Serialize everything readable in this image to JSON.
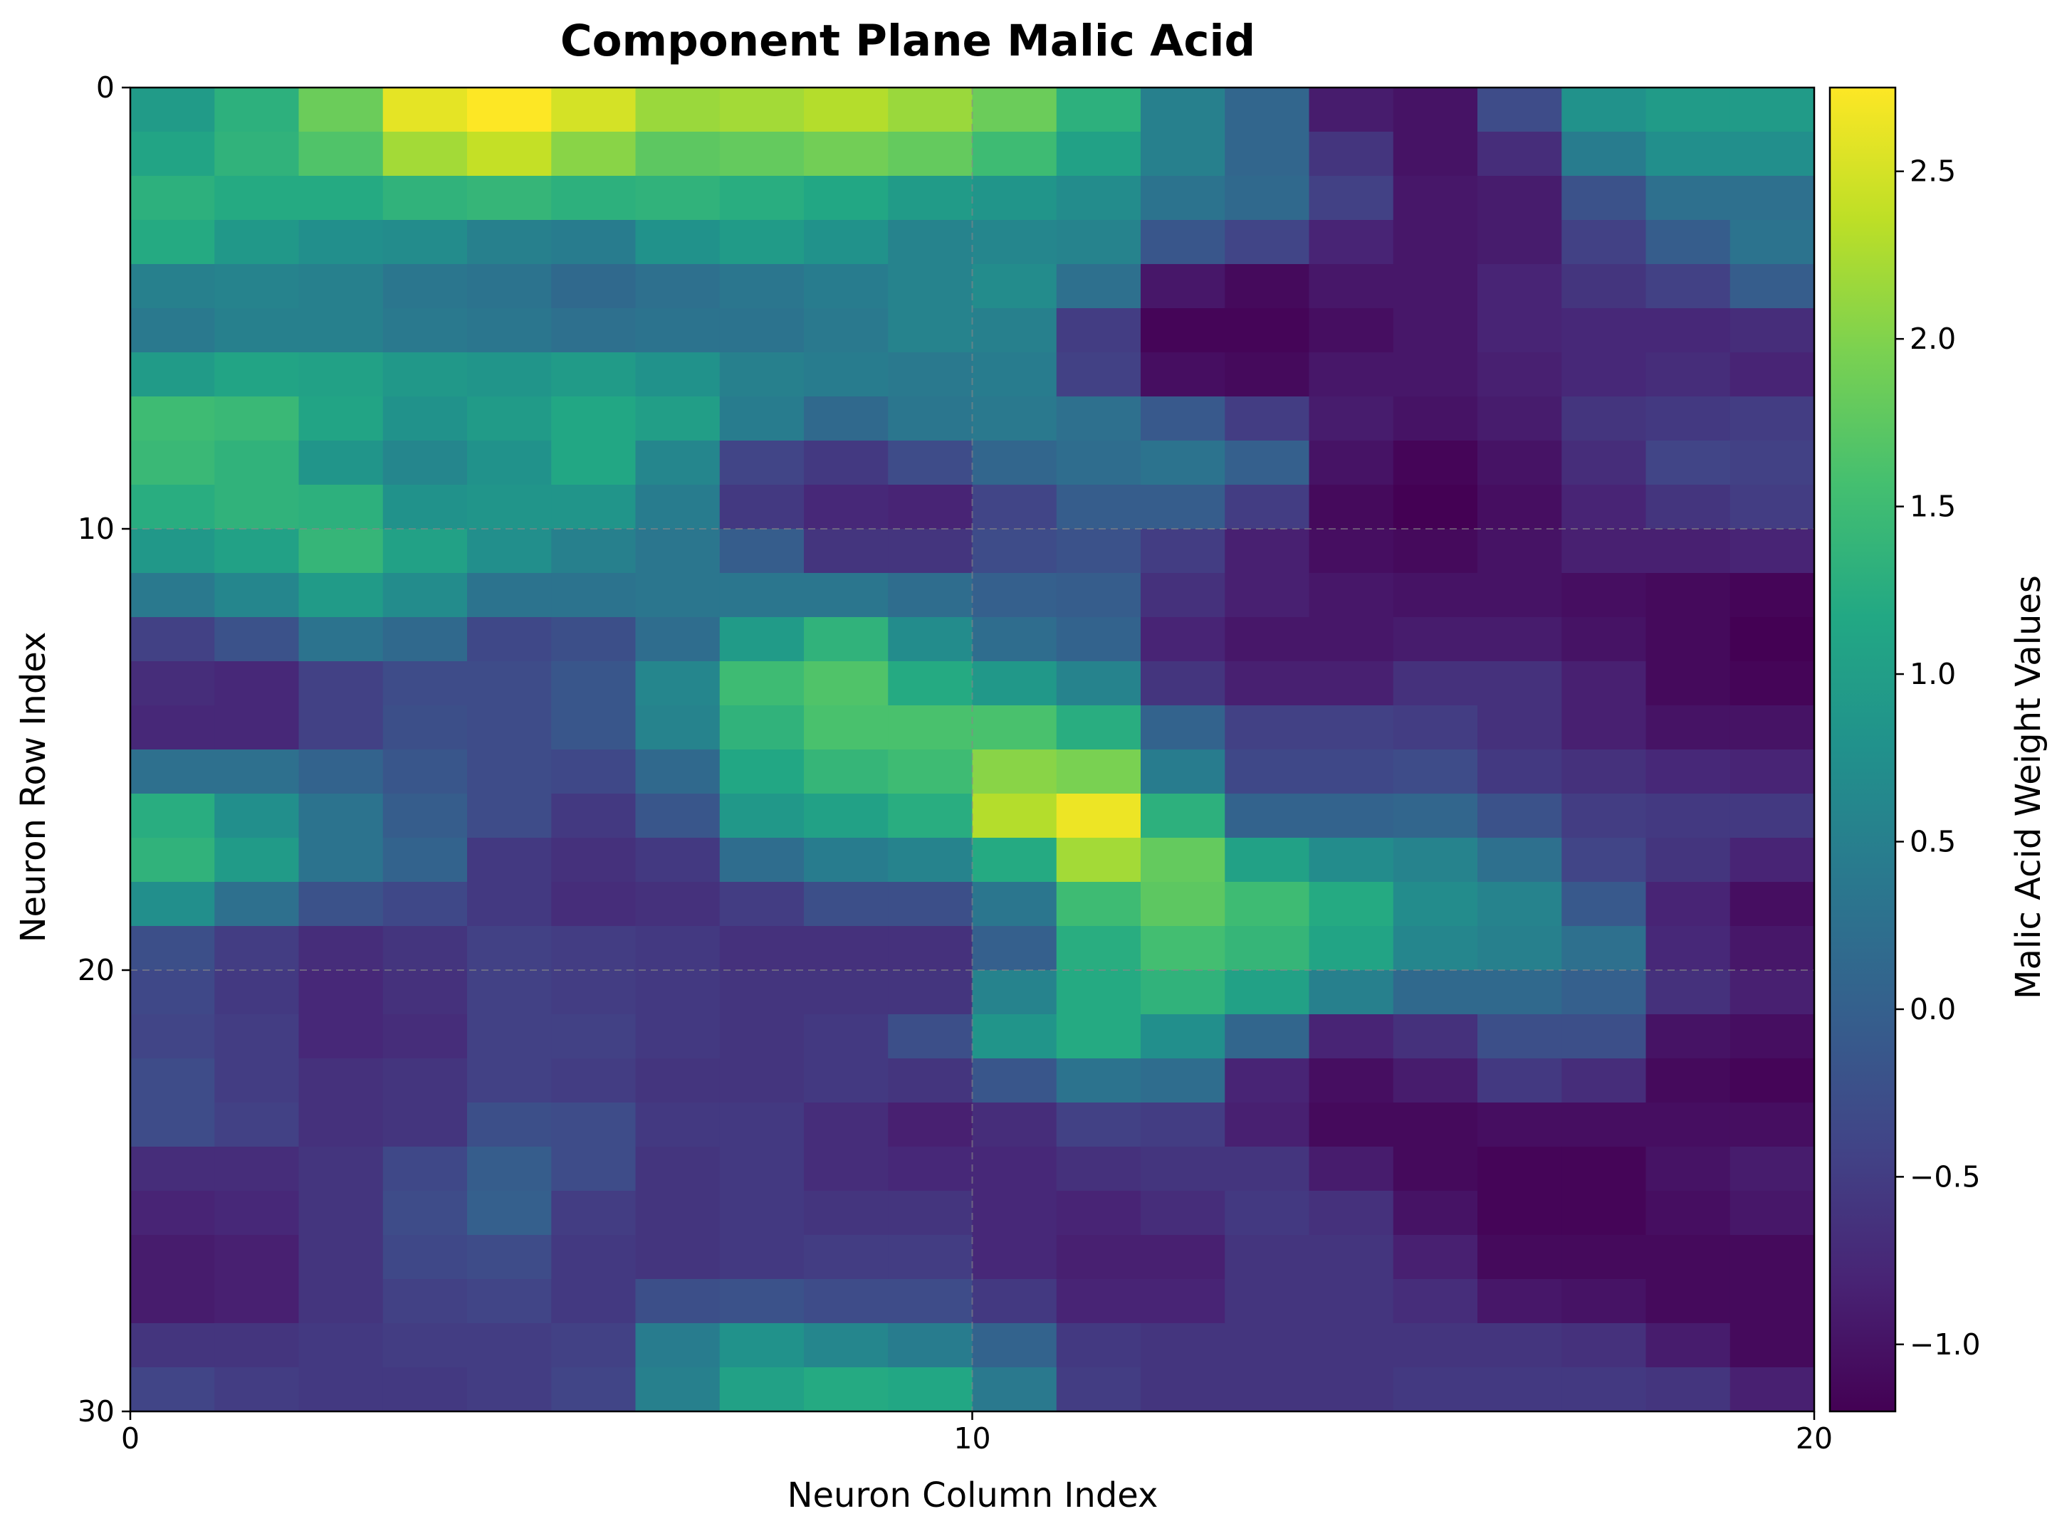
{
  "chart_data": {
    "type": "heatmap",
    "title": "Component Plane Malic Acid",
    "xlabel": "Neuron Column Index",
    "ylabel": "Neuron Row Index",
    "colorbar_label": "Malic Acid Weight Values",
    "colormap": "viridis",
    "xlim": [
      0,
      20
    ],
    "ylim": [
      0,
      30
    ],
    "y_inverted": true,
    "grid": true,
    "x_ticks": [
      0,
      10,
      20
    ],
    "y_ticks": [
      0,
      10,
      20,
      30
    ],
    "colorbar_ticks": [
      -1.0,
      -0.5,
      0.0,
      0.5,
      1.0,
      1.5,
      2.0,
      2.5
    ],
    "colorbar_tick_labels": [
      "−1.0",
      "−0.5",
      "0.0",
      "0.5",
      "1.0",
      "1.5",
      "2.0",
      "2.5"
    ],
    "vmin": -1.2,
    "vmax": 2.75,
    "values": [
      [
        0.95,
        1.3,
        1.85,
        2.6,
        2.75,
        2.5,
        2.15,
        2.2,
        2.3,
        2.15,
        1.85,
        1.3,
        0.5,
        0.1,
        -0.9,
        -1.0,
        -0.3,
        0.8,
        0.95,
        0.95
      ],
      [
        1.1,
        1.35,
        1.65,
        2.2,
        2.4,
        2.05,
        1.75,
        1.8,
        1.9,
        1.8,
        1.5,
        1.05,
        0.5,
        0.1,
        -0.6,
        -1.0,
        -0.7,
        0.45,
        0.75,
        0.75
      ],
      [
        1.3,
        1.2,
        1.2,
        1.35,
        1.4,
        1.3,
        1.35,
        1.25,
        1.15,
        0.95,
        0.85,
        0.7,
        0.3,
        0.15,
        -0.45,
        -0.95,
        -0.9,
        -0.2,
        0.25,
        0.25
      ],
      [
        1.2,
        0.9,
        0.75,
        0.7,
        0.5,
        0.45,
        0.8,
        0.95,
        0.8,
        0.55,
        0.6,
        0.55,
        -0.15,
        -0.4,
        -0.8,
        -0.95,
        -0.9,
        -0.45,
        -0.05,
        0.3
      ],
      [
        0.5,
        0.55,
        0.5,
        0.35,
        0.3,
        0.15,
        0.25,
        0.35,
        0.45,
        0.55,
        0.7,
        0.25,
        -0.95,
        -1.1,
        -0.95,
        -0.95,
        -0.8,
        -0.6,
        -0.45,
        -0.05
      ],
      [
        0.4,
        0.5,
        0.5,
        0.4,
        0.35,
        0.25,
        0.3,
        0.3,
        0.4,
        0.55,
        0.5,
        -0.5,
        -1.15,
        -1.15,
        -1.05,
        -0.95,
        -0.8,
        -0.75,
        -0.75,
        -0.7
      ],
      [
        0.95,
        1.1,
        1.05,
        0.9,
        0.85,
        0.95,
        0.8,
        0.5,
        0.45,
        0.4,
        0.45,
        -0.45,
        -1.05,
        -1.1,
        -0.95,
        -0.95,
        -0.85,
        -0.75,
        -0.7,
        -0.8
      ],
      [
        1.5,
        1.45,
        1.1,
        0.8,
        0.95,
        1.15,
        1.0,
        0.45,
        0.15,
        0.35,
        0.4,
        0.25,
        -0.1,
        -0.5,
        -0.9,
        -1.0,
        -0.9,
        -0.6,
        -0.55,
        -0.5
      ],
      [
        1.45,
        1.35,
        0.85,
        0.6,
        0.8,
        1.15,
        0.6,
        -0.4,
        -0.55,
        -0.3,
        0.1,
        0.2,
        0.3,
        0.0,
        -1.0,
        -1.15,
        -1.0,
        -0.7,
        -0.4,
        -0.45
      ],
      [
        1.25,
        1.35,
        1.3,
        0.8,
        0.85,
        0.85,
        0.45,
        -0.55,
        -0.75,
        -0.8,
        -0.4,
        -0.05,
        -0.05,
        -0.5,
        -1.1,
        -1.2,
        -1.05,
        -0.8,
        -0.6,
        -0.5
      ],
      [
        0.9,
        1.05,
        1.4,
        1.05,
        0.75,
        0.5,
        0.35,
        -0.05,
        -0.6,
        -0.6,
        -0.3,
        -0.2,
        -0.5,
        -0.85,
        -1.05,
        -1.1,
        -1.0,
        -0.85,
        -0.85,
        -0.8
      ],
      [
        0.4,
        0.6,
        0.95,
        0.7,
        0.3,
        0.3,
        0.35,
        0.35,
        0.35,
        0.2,
        0.0,
        -0.05,
        -0.65,
        -0.85,
        -0.95,
        -1.0,
        -1.0,
        -1.05,
        -1.1,
        -1.15
      ],
      [
        -0.45,
        -0.2,
        0.3,
        0.15,
        -0.35,
        -0.25,
        0.2,
        0.95,
        1.35,
        0.7,
        0.2,
        0.05,
        -0.8,
        -0.95,
        -0.95,
        -0.9,
        -0.9,
        -1.0,
        -1.1,
        -1.2
      ],
      [
        -0.7,
        -0.75,
        -0.45,
        -0.3,
        -0.3,
        -0.15,
        0.6,
        1.5,
        1.65,
        1.2,
        0.9,
        0.55,
        -0.6,
        -0.85,
        -0.85,
        -0.65,
        -0.65,
        -0.85,
        -1.1,
        -1.15
      ],
      [
        -0.75,
        -0.75,
        -0.45,
        -0.25,
        -0.3,
        -0.15,
        0.55,
        1.35,
        1.6,
        1.6,
        1.6,
        1.25,
        0.05,
        -0.45,
        -0.45,
        -0.5,
        -0.65,
        -0.85,
        -1.0,
        -1.0
      ],
      [
        0.25,
        0.25,
        0.05,
        -0.15,
        -0.3,
        -0.35,
        0.15,
        1.15,
        1.4,
        1.5,
        2.05,
        1.95,
        0.45,
        -0.35,
        -0.35,
        -0.3,
        -0.55,
        -0.65,
        -0.75,
        -0.8
      ],
      [
        1.25,
        0.75,
        0.3,
        -0.05,
        -0.3,
        -0.55,
        -0.15,
        0.9,
        1.05,
        1.25,
        2.3,
        2.65,
        1.3,
        0.05,
        0.05,
        0.1,
        -0.2,
        -0.5,
        -0.55,
        -0.55
      ],
      [
        1.35,
        0.95,
        0.3,
        0.05,
        -0.55,
        -0.65,
        -0.55,
        0.2,
        0.45,
        0.55,
        1.2,
        2.2,
        1.8,
        1.05,
        0.7,
        0.55,
        0.25,
        -0.4,
        -0.6,
        -0.8
      ],
      [
        0.75,
        0.25,
        -0.2,
        -0.35,
        -0.55,
        -0.7,
        -0.65,
        -0.5,
        -0.25,
        -0.25,
        0.35,
        1.5,
        1.75,
        1.5,
        1.2,
        0.7,
        0.55,
        -0.1,
        -0.8,
        -1.05
      ],
      [
        -0.25,
        -0.5,
        -0.7,
        -0.6,
        -0.45,
        -0.5,
        -0.55,
        -0.65,
        -0.65,
        -0.65,
        0.0,
        1.25,
        1.55,
        1.4,
        1.1,
        0.6,
        0.5,
        0.25,
        -0.75,
        -0.95
      ],
      [
        -0.35,
        -0.55,
        -0.75,
        -0.65,
        -0.45,
        -0.5,
        -0.55,
        -0.6,
        -0.6,
        -0.6,
        0.55,
        1.2,
        1.35,
        1.05,
        0.5,
        0.15,
        0.15,
        0.0,
        -0.65,
        -0.85
      ],
      [
        -0.4,
        -0.5,
        -0.75,
        -0.7,
        -0.45,
        -0.45,
        -0.55,
        -0.6,
        -0.55,
        -0.25,
        0.85,
        1.2,
        0.75,
        0.1,
        -0.8,
        -0.65,
        -0.25,
        -0.25,
        -1.0,
        -1.05
      ],
      [
        -0.3,
        -0.5,
        -0.65,
        -0.6,
        -0.45,
        -0.5,
        -0.6,
        -0.6,
        -0.55,
        -0.6,
        -0.15,
        0.3,
        0.2,
        -0.8,
        -1.05,
        -0.9,
        -0.55,
        -0.7,
        -1.1,
        -1.15
      ],
      [
        -0.3,
        -0.45,
        -0.65,
        -0.6,
        -0.25,
        -0.3,
        -0.55,
        -0.55,
        -0.7,
        -0.85,
        -0.7,
        -0.45,
        -0.5,
        -0.85,
        -1.1,
        -1.1,
        -1.05,
        -1.05,
        -1.05,
        -1.05
      ],
      [
        -0.7,
        -0.7,
        -0.6,
        -0.35,
        -0.05,
        -0.3,
        -0.6,
        -0.55,
        -0.7,
        -0.75,
        -0.75,
        -0.65,
        -0.6,
        -0.6,
        -0.9,
        -1.1,
        -1.15,
        -1.15,
        -1.0,
        -0.9
      ],
      [
        -0.8,
        -0.75,
        -0.6,
        -0.3,
        0.0,
        -0.5,
        -0.6,
        -0.55,
        -0.6,
        -0.6,
        -0.75,
        -0.8,
        -0.7,
        -0.55,
        -0.65,
        -1.0,
        -1.15,
        -1.15,
        -1.05,
        -0.95
      ],
      [
        -0.9,
        -0.85,
        -0.6,
        -0.35,
        -0.3,
        -0.55,
        -0.6,
        -0.55,
        -0.5,
        -0.5,
        -0.75,
        -0.85,
        -0.85,
        -0.6,
        -0.6,
        -0.85,
        -1.1,
        -1.1,
        -1.1,
        -1.1
      ],
      [
        -0.9,
        -0.85,
        -0.6,
        -0.45,
        -0.4,
        -0.55,
        -0.25,
        -0.2,
        -0.3,
        -0.3,
        -0.55,
        -0.8,
        -0.8,
        -0.6,
        -0.6,
        -0.7,
        -0.95,
        -1.0,
        -1.1,
        -1.1
      ],
      [
        -0.6,
        -0.6,
        -0.55,
        -0.5,
        -0.5,
        -0.45,
        0.45,
        0.8,
        0.6,
        0.45,
        0.05,
        -0.55,
        -0.6,
        -0.6,
        -0.6,
        -0.6,
        -0.6,
        -0.65,
        -0.9,
        -1.1
      ],
      [
        -0.4,
        -0.5,
        -0.55,
        -0.55,
        -0.5,
        -0.4,
        0.5,
        1.05,
        1.2,
        1.15,
        0.4,
        -0.5,
        -0.6,
        -0.6,
        -0.6,
        -0.55,
        -0.55,
        -0.55,
        -0.6,
        -0.85
      ]
    ]
  }
}
